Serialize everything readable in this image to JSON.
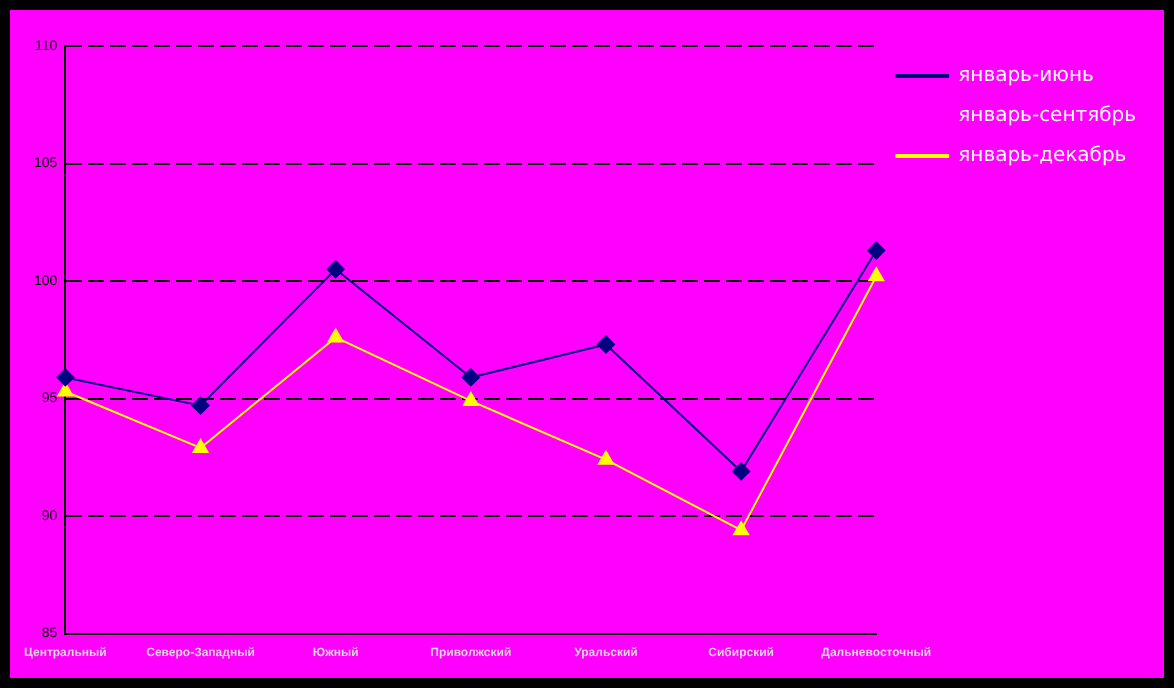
{
  "chart_data": {
    "type": "line",
    "categories": [
      "Центральный",
      "Северо-Западный",
      "Южный",
      "Приволжский",
      "Уральский",
      "Сибирский",
      "Дальневосточный"
    ],
    "series": [
      {
        "name": "январь-июнь",
        "color": "#000080",
        "marker": "diamond",
        "values": [
          95.9,
          94.7,
          100.5,
          95.9,
          97.3,
          91.9,
          101.3
        ]
      },
      {
        "name": "январь-сентябрь",
        "marker": "none",
        "values": [
          null,
          null,
          null,
          null,
          null,
          null,
          null
        ]
      },
      {
        "name": "январь-декабрь",
        "color": "#ffff00",
        "marker": "triangle",
        "values": [
          95.3,
          92.9,
          97.6,
          94.9,
          92.4,
          89.4,
          100.2
        ]
      }
    ],
    "ylim": [
      85,
      110
    ],
    "yticks": [
      85,
      90,
      95,
      100,
      105,
      110
    ],
    "grid": "y",
    "legend": "top right"
  }
}
